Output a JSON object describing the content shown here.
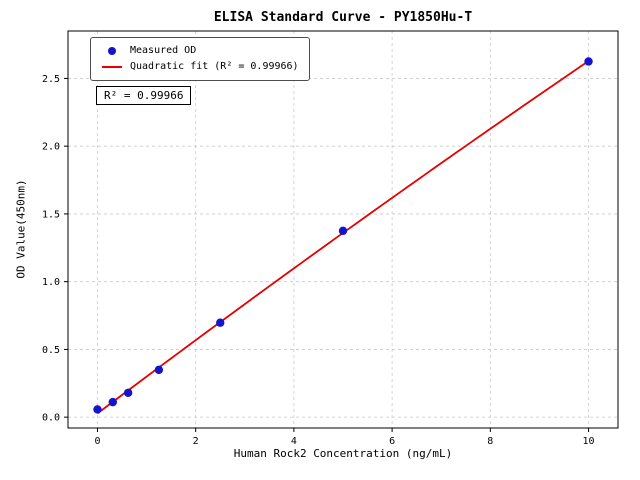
{
  "figure": {
    "title": "ELISA Standard Curve - PY1850Hu-T",
    "xlabel": "Human Rock2 Concentration (ng/mL)",
    "ylabel": "OD Value(450nm)",
    "annotation": "R² = 0.99966"
  },
  "legend": {
    "position": "upper left",
    "items": [
      {
        "label": "Measured OD",
        "marker": "dot",
        "color": "#1414cc"
      },
      {
        "label": "Quadratic fit (R² = 0.99966)",
        "marker": "line",
        "color": "#e60000"
      }
    ]
  },
  "chart_data": {
    "type": "scatter",
    "title": "ELISA Standard Curve - PY1850Hu-T",
    "xlabel": "Human Rock2 Concentration (ng/mL)",
    "ylabel": "OD Value(450nm)",
    "series": [
      {
        "name": "Measured OD",
        "type": "scatter",
        "color": "#1414cc",
        "x": [
          0,
          0.3125,
          0.625,
          1.25,
          2.5,
          5,
          10
        ],
        "y": [
          0.057,
          0.111,
          0.18,
          0.349,
          0.697,
          1.375,
          2.625
        ]
      },
      {
        "name": "Quadratic fit (R² = 0.99966)",
        "type": "line",
        "color": "#e60000",
        "fit": "quadratic",
        "r_squared": 0.99966
      }
    ],
    "x_ticks": [
      0,
      2,
      4,
      6,
      8,
      10
    ],
    "y_ticks": [
      0,
      0.5,
      1,
      1.5,
      2,
      2.5
    ],
    "xlim": [
      -0.6,
      10.6
    ],
    "ylim": [
      -0.08,
      2.85
    ],
    "grid": true,
    "grid_style": "dashed",
    "grid_color": "#c9c9c9",
    "legend_position": "upper left"
  }
}
